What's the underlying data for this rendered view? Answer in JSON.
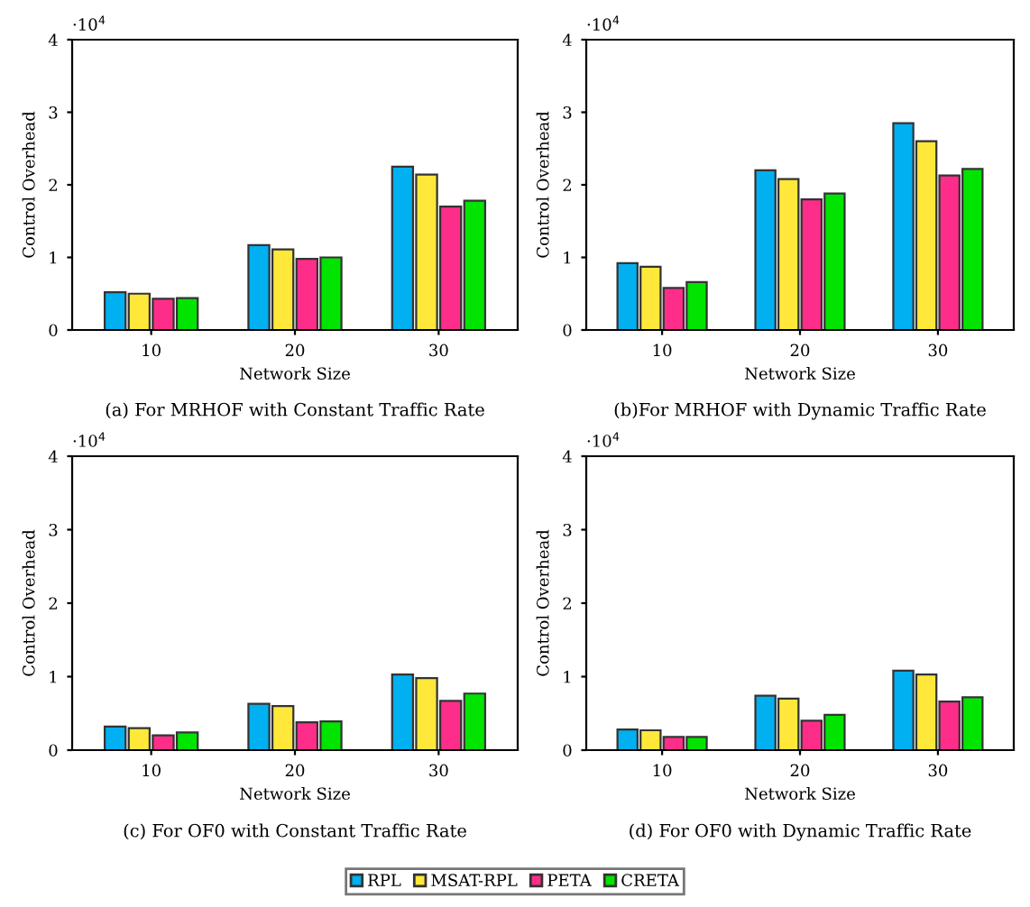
{
  "chart_data": [
    {
      "type": "bar",
      "categories": [
        "10",
        "20",
        "30"
      ],
      "xlabel": "Network Size",
      "ylabel": "Control Overhead",
      "ylim": [
        0,
        4
      ],
      "yticks": [
        0,
        1,
        2,
        3,
        4
      ],
      "annotations": [
        "·10$^{4}$",
        "(a) For MRHOF with Constant Traffic Rate"
      ],
      "grid": false,
      "legend": false,
      "series": [
        {
          "color": "#00b0f0",
          "values": [
            0.52,
            1.17,
            2.25
          ]
        },
        {
          "color": "#ffe83a",
          "values": [
            0.5,
            1.11,
            2.14
          ]
        },
        {
          "color": "#ff2d8a",
          "values": [
            0.43,
            0.98,
            1.7
          ]
        },
        {
          "color": "#00e400",
          "values": [
            0.44,
            1.0,
            1.78
          ]
        }
      ]
    },
    {
      "type": "bar",
      "categories": [
        "10",
        "20",
        "30"
      ],
      "xlabel": "Network Size",
      "ylabel": "Control Overhead",
      "ylim": [
        0,
        4
      ],
      "yticks": [
        0,
        1,
        2,
        3,
        4
      ],
      "annotations": [
        "·10$^{4}$",
        "(b)For MRHOF with Dynamic Traffic Rate"
      ],
      "grid": false,
      "legend": false,
      "series": [
        {
          "color": "#00b0f0",
          "values": [
            0.92,
            2.2,
            2.85
          ]
        },
        {
          "color": "#ffe83a",
          "values": [
            0.87,
            2.08,
            2.6
          ]
        },
        {
          "color": "#ff2d8a",
          "values": [
            0.58,
            1.8,
            2.13
          ]
        },
        {
          "color": "#00e400",
          "values": [
            0.66,
            1.88,
            2.22
          ]
        }
      ]
    },
    {
      "type": "bar",
      "categories": [
        "10",
        "20",
        "30"
      ],
      "xlabel": "Network Size",
      "ylabel": "Control Overhead",
      "ylim": [
        0,
        4
      ],
      "yticks": [
        0,
        1,
        2,
        3,
        4
      ],
      "annotations": [
        "·10$^{4}$",
        "(c) For OF0 with Constant Traffic Rate"
      ],
      "grid": false,
      "legend": false,
      "series": [
        {
          "color": "#00b0f0",
          "values": [
            0.32,
            0.63,
            1.03
          ]
        },
        {
          "color": "#ffe83a",
          "values": [
            0.3,
            0.6,
            0.98
          ]
        },
        {
          "color": "#ff2d8a",
          "values": [
            0.2,
            0.38,
            0.67
          ]
        },
        {
          "color": "#00e400",
          "values": [
            0.24,
            0.39,
            0.77
          ]
        }
      ]
    },
    {
      "type": "bar",
      "categories": [
        "10",
        "20",
        "30"
      ],
      "xlabel": "Network Size",
      "ylabel": "Control Overhead",
      "ylim": [
        0,
        4
      ],
      "yticks": [
        0,
        1,
        2,
        3,
        4
      ],
      "annotations": [
        "·10$^{4}$",
        "(d) For OF0 with Dynamic Traffic Rate"
      ],
      "grid": false,
      "legend": "bottom",
      "series": [
        {
          "name": "RPL",
          "color": "#00b0f0",
          "values": [
            0.28,
            0.74,
            1.08
          ]
        },
        {
          "name": "MSAT-RPL",
          "color": "#ffe83a",
          "values": [
            0.27,
            0.7,
            1.03
          ]
        },
        {
          "name": "PETA",
          "color": "#ff2d8a",
          "values": [
            0.18,
            0.4,
            0.66
          ]
        },
        {
          "name": "CRETA",
          "color": "#00e400",
          "values": [
            0.18,
            0.48,
            0.72
          ]
        }
      ]
    }
  ]
}
